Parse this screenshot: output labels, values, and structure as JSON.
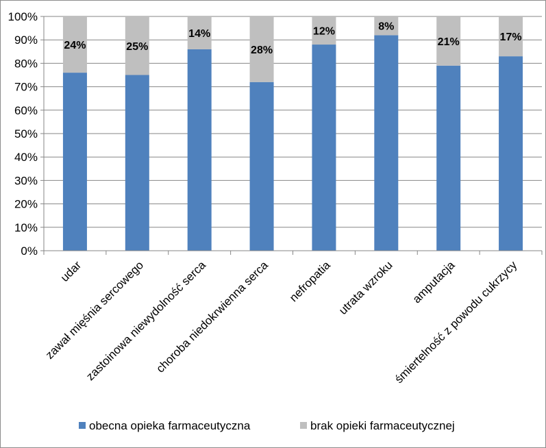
{
  "chart_data": {
    "type": "bar",
    "stacked": true,
    "categories": [
      "udar",
      "zawał mięśnia sercowego",
      "zastoinowa niewydolność serca",
      "choroba niedokrwienna serca",
      "nefropatia",
      "utrata wzroku",
      "amputacja",
      "śmiertelność z powodu cukrzycy"
    ],
    "series": [
      {
        "name": "obecna opieka farmaceutyczna",
        "values": [
          76,
          75,
          86,
          72,
          88,
          92,
          79,
          83
        ],
        "color": "#4f81bd"
      },
      {
        "name": "brak opieki farmaceutycznej",
        "values": [
          24,
          25,
          14,
          28,
          12,
          8,
          21,
          17
        ],
        "color": "#bfbfbf"
      }
    ],
    "data_labels": [
      "24%",
      "25%",
      "14%",
      "28%",
      "12%",
      "8%",
      "21%",
      "17%"
    ],
    "y_ticks": [
      "0%",
      "10%",
      "20%",
      "30%",
      "40%",
      "50%",
      "60%",
      "70%",
      "80%",
      "90%",
      "100%"
    ],
    "ylim": [
      0,
      100
    ],
    "grid": true,
    "legend_position": "bottom"
  }
}
